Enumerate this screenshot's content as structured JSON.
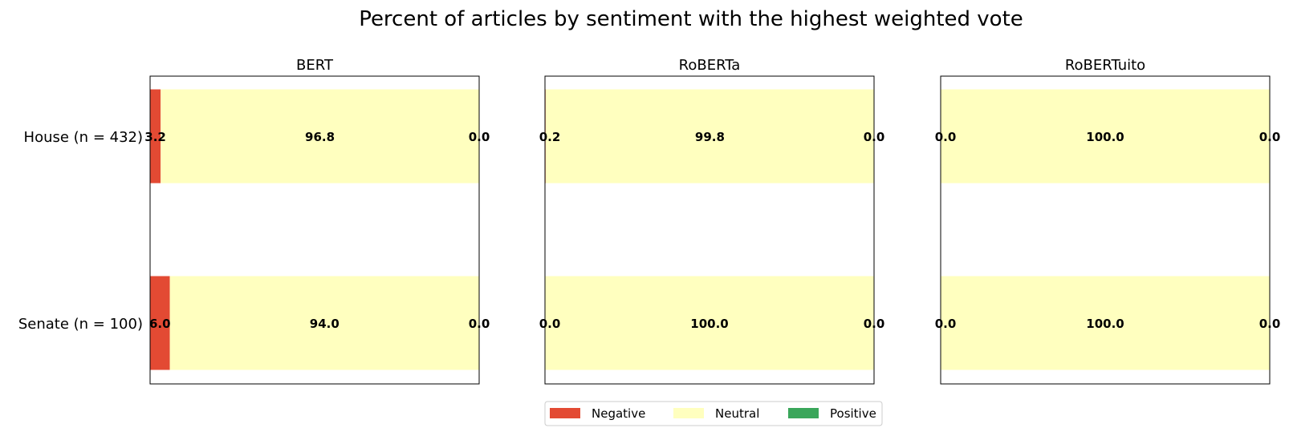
{
  "chart_data": {
    "type": "bar",
    "orientation": "horizontal",
    "stacked": true,
    "title": "Percent of articles by sentiment with the highest weighted vote",
    "categories": [
      "House (n = 432)",
      "Senate (n = 100)"
    ],
    "xlim": [
      0,
      100
    ],
    "legend": {
      "placement": "bottom-center",
      "entries": [
        "Negative",
        "Neutral",
        "Positive"
      ]
    },
    "colors": {
      "Negative": "#e34a33",
      "Neutral": "#ffffbf",
      "Positive": "#3aa65a"
    },
    "panels": [
      {
        "title": "BERT",
        "series": [
          {
            "name": "Negative",
            "values": [
              3.2,
              6.0
            ]
          },
          {
            "name": "Neutral",
            "values": [
              96.8,
              94.0
            ]
          },
          {
            "name": "Positive",
            "values": [
              0.0,
              0.0
            ]
          }
        ]
      },
      {
        "title": "RoBERTa",
        "series": [
          {
            "name": "Negative",
            "values": [
              0.2,
              0.0
            ]
          },
          {
            "name": "Neutral",
            "values": [
              99.8,
              100.0
            ]
          },
          {
            "name": "Positive",
            "values": [
              0.0,
              0.0
            ]
          }
        ]
      },
      {
        "title": "RoBERTuito",
        "series": [
          {
            "name": "Negative",
            "values": [
              0.0,
              0.0
            ]
          },
          {
            "name": "Neutral",
            "values": [
              100.0,
              100.0
            ]
          },
          {
            "name": "Positive",
            "values": [
              0.0,
              0.0
            ]
          }
        ]
      }
    ]
  }
}
